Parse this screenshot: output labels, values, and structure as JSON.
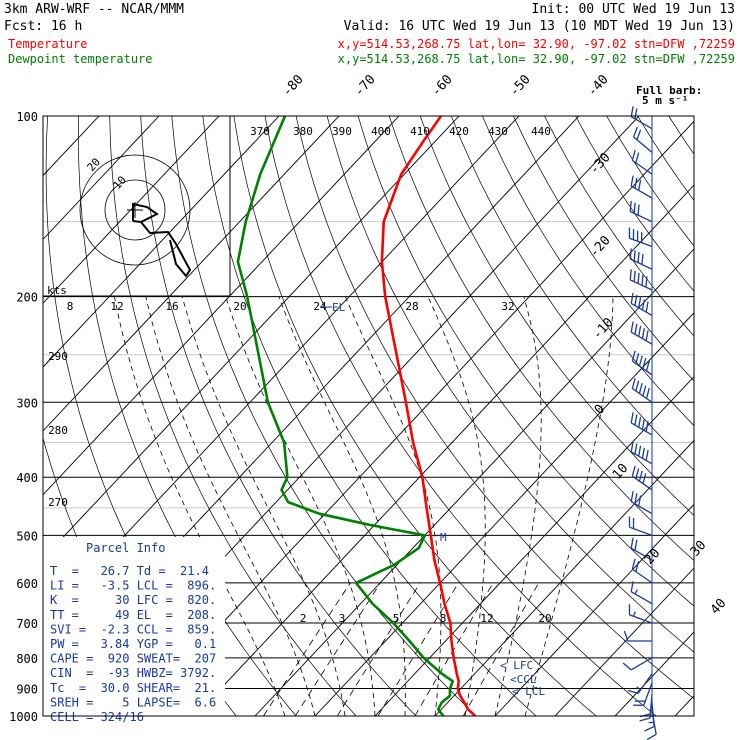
{
  "header": {
    "model": "3km ARW-WRF -- NCAR/MMM",
    "init": "Init: 00 UTC Wed 19 Jun 13",
    "fcst": "Fcst:   16 h",
    "valid": "Valid: 16 UTC Wed 19 Jun 13 (10 MDT Wed 19 Jun 13)",
    "temp_label": "Temperature",
    "dew_label": "Dewpoint temperature",
    "temp_loc": "x,y=514.53,268.75   lat,lon= 32.90, -97.02  stn=DFW ,72259",
    "dew_loc": "x,y=514.53,268.75   lat,lon= 32.90, -97.02  stn=DFW ,72259",
    "barb_title": "Full barb:",
    "barb_unit": "5 m s⁻¹"
  },
  "colors": {
    "temperature": "#ff0000",
    "dewpoint": "#008000",
    "text_blue": "#1a3aa0",
    "hodograph": "#000000",
    "grid": "#000000"
  },
  "pressure_labels": [
    "100",
    "200",
    "300",
    "400",
    "500",
    "600",
    "700",
    "800",
    "900",
    "1000"
  ],
  "isotherm_labels": [
    "-80",
    "-70",
    "-60",
    "-50",
    "-40",
    "-30",
    "-20",
    "-10",
    "0",
    "10",
    "20",
    "30",
    "40"
  ],
  "theta_labels": [
    "370",
    "380",
    "390",
    "400",
    "410",
    "420",
    "430",
    "440"
  ],
  "side_theta_labels": [
    "290",
    "280",
    "270"
  ],
  "mixing_ratio_labels": [
    "2",
    "3",
    "5",
    "8",
    "12",
    "20"
  ],
  "hodo": {
    "kts_label": "kts",
    "speed_labels": [
      "8",
      "12",
      "16",
      "20",
      "24",
      "28",
      "32"
    ],
    "ring_labels": [
      "20",
      "10"
    ],
    "el_label": "EL"
  },
  "parcel_info": {
    "title": "Parcel Info",
    "rows": [
      "T  =   26.7 Td =  21.4",
      "LI =   -3.5 LCL =  896.",
      "K  =     30 LFC =  820.",
      "TT =     49 EL  =  208.",
      "SVI =  -2.3 CCL =  859.",
      "PW =   3.84 YGP =   0.1",
      "CAPE =  920 SWEAT=  207",
      "CIN  =  -93 HWBZ= 3792.",
      "Tc  =  30.0 SHEAR=  21.",
      "SREH =    5 LAPSE=  6.6",
      "CELL = 324/16"
    ]
  },
  "level_markers": {
    "lfc": "< LFC",
    "ccl": "<CCL",
    "lcl": "< LCL",
    "m": "M"
  },
  "chart_data": {
    "type": "line",
    "title": "",
    "xlabel": "",
    "ylabel": "",
    "pressure_range_hPa": [
      1000,
      100
    ],
    "y_scale": "log-pressure",
    "x_axis": "skewed temperature (°C)",
    "series": [
      {
        "name": "Temperature",
        "points": [
          [
            1000,
            26.7
          ],
          [
            975,
            24.5
          ],
          [
            950,
            22.8
          ],
          [
            925,
            21.0
          ],
          [
            900,
            19.5
          ],
          [
            875,
            18.5
          ],
          [
            850,
            17.0
          ],
          [
            800,
            14.0
          ],
          [
            750,
            11.0
          ],
          [
            700,
            8.0
          ],
          [
            650,
            4.0
          ],
          [
            600,
            0.0
          ],
          [
            550,
            -4.5
          ],
          [
            500,
            -9.0
          ],
          [
            450,
            -14.0
          ],
          [
            400,
            -19.5
          ],
          [
            350,
            -26.5
          ],
          [
            300,
            -34.0
          ],
          [
            250,
            -43.0
          ],
          [
            200,
            -54.0
          ],
          [
            175,
            -60.0
          ],
          [
            150,
            -66.0
          ],
          [
            125,
            -70.5
          ],
          [
            110,
            -72.0
          ],
          [
            100,
            -73.0
          ]
        ]
      },
      {
        "name": "Dewpoint temperature",
        "points": [
          [
            1000,
            21.4
          ],
          [
            975,
            19.5
          ],
          [
            950,
            19.0
          ],
          [
            925,
            19.3
          ],
          [
            900,
            18.2
          ],
          [
            875,
            17.5
          ],
          [
            850,
            14.5
          ],
          [
            800,
            9.0
          ],
          [
            750,
            4.0
          ],
          [
            700,
            -1.5
          ],
          [
            650,
            -8.0
          ],
          [
            600,
            -14.0
          ],
          [
            560,
            -10.5
          ],
          [
            525,
            -9.0
          ],
          [
            500,
            -10.0
          ],
          [
            480,
            -21.0
          ],
          [
            460,
            -31.0
          ],
          [
            440,
            -38.0
          ],
          [
            420,
            -41.0
          ],
          [
            400,
            -42.0
          ],
          [
            350,
            -48.0
          ],
          [
            300,
            -57.0
          ],
          [
            250,
            -66.0
          ],
          [
            200,
            -77.0
          ],
          [
            175,
            -84.0
          ],
          [
            150,
            -89.0
          ],
          [
            125,
            -94.0
          ],
          [
            100,
            -99.0
          ]
        ]
      }
    ],
    "wind_barbs": [
      {
        "p": 980,
        "dir": 170,
        "spd": 5
      },
      {
        "p": 950,
        "dir": 175,
        "spd": 8
      },
      {
        "p": 920,
        "dir": 185,
        "spd": 10
      },
      {
        "p": 880,
        "dir": 200,
        "spd": 10
      },
      {
        "p": 850,
        "dir": 215,
        "spd": 8
      },
      {
        "p": 800,
        "dir": 240,
        "spd": 5
      },
      {
        "p": 750,
        "dir": 270,
        "spd": 5
      },
      {
        "p": 700,
        "dir": 290,
        "spd": 8
      },
      {
        "p": 650,
        "dir": 300,
        "spd": 8
      },
      {
        "p": 600,
        "dir": 305,
        "spd": 10
      },
      {
        "p": 550,
        "dir": 300,
        "spd": 10
      },
      {
        "p": 500,
        "dir": 290,
        "spd": 10
      },
      {
        "p": 460,
        "dir": 300,
        "spd": 15
      },
      {
        "p": 420,
        "dir": 305,
        "spd": 20
      },
      {
        "p": 380,
        "dir": 300,
        "spd": 25
      },
      {
        "p": 340,
        "dir": 300,
        "spd": 25
      },
      {
        "p": 300,
        "dir": 305,
        "spd": 25
      },
      {
        "p": 270,
        "dir": 305,
        "spd": 25
      },
      {
        "p": 240,
        "dir": 300,
        "spd": 25
      },
      {
        "p": 215,
        "dir": 300,
        "spd": 25
      },
      {
        "p": 195,
        "dir": 295,
        "spd": 25
      },
      {
        "p": 180,
        "dir": 295,
        "spd": 20
      },
      {
        "p": 165,
        "dir": 290,
        "spd": 20
      },
      {
        "p": 150,
        "dir": 295,
        "spd": 15
      },
      {
        "p": 137,
        "dir": 300,
        "spd": 15
      },
      {
        "p": 125,
        "dir": 305,
        "spd": 10
      },
      {
        "p": 115,
        "dir": 310,
        "spd": 10
      },
      {
        "p": 105,
        "dir": 300,
        "spd": 10
      }
    ]
  }
}
